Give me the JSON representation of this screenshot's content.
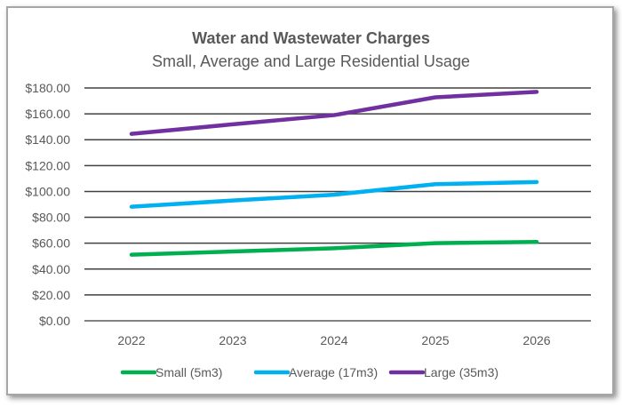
{
  "chart_data": {
    "type": "line",
    "title": "Water and Wastewater Charges",
    "subtitle": "Small, Average and Large Residential Usage",
    "xlabel": "",
    "ylabel": "",
    "categories": [
      "2022",
      "2023",
      "2024",
      "2025",
      "2026"
    ],
    "ylim": [
      0,
      180
    ],
    "yticks": [
      "$0.00",
      "$20.00",
      "$40.00",
      "$60.00",
      "$80.00",
      "$100.00",
      "$120.00",
      "$140.00",
      "$160.00",
      "$180.00"
    ],
    "grid": true,
    "legend_position": "bottom",
    "series": [
      {
        "name": "Small (5m3)",
        "color": "#00b050",
        "values": [
          51.1,
          53.6,
          56.1,
          60.0,
          61.0
        ]
      },
      {
        "name": "Average (17m3)",
        "color": "#00b0f0",
        "values": [
          88.2,
          93.0,
          97.5,
          105.6,
          107.3
        ]
      },
      {
        "name": "Large (35m3)",
        "color": "#7030a0",
        "values": [
          144.5,
          151.9,
          159.0,
          172.8,
          177.0
        ]
      }
    ]
  }
}
